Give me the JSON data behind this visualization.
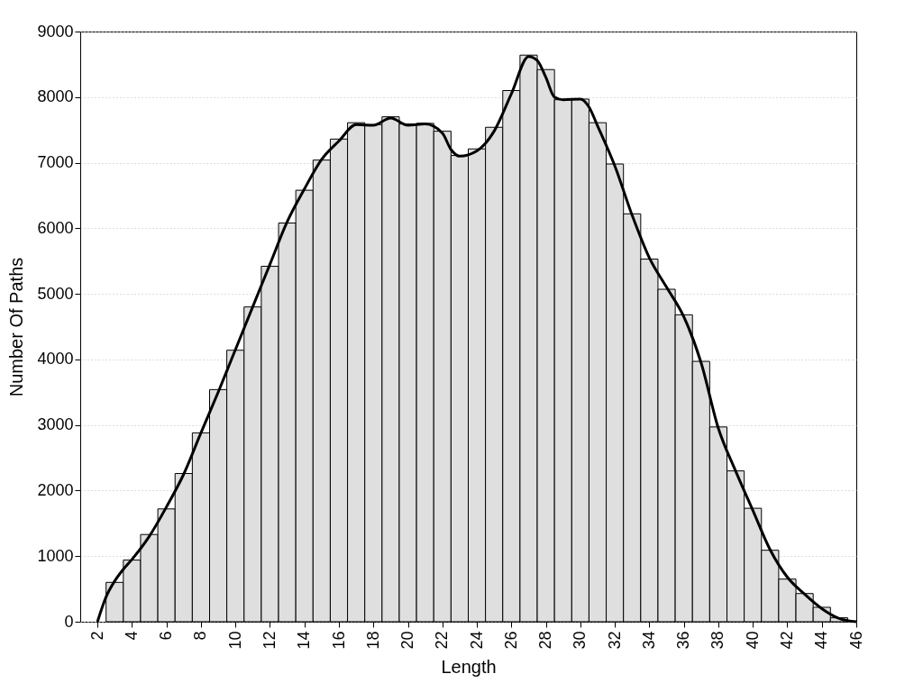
{
  "chart_data": {
    "type": "histogram",
    "xlabel": "Length",
    "ylabel": "Number Of Paths",
    "bins": [
      2.5,
      3.5,
      4.5,
      5.5,
      6.5,
      7.5,
      8.5,
      9.5,
      10.5,
      11.5,
      12.5,
      13.5,
      14.5,
      15.5,
      16.5,
      17.5,
      18.5,
      19.5,
      20.5,
      21.5,
      22.5,
      23.5,
      24.5,
      25.5,
      26.5,
      27.5,
      28.5,
      29.5,
      30.5,
      31.5,
      32.5,
      33.5,
      34.5,
      35.5,
      36.5,
      37.5,
      38.5,
      39.5,
      40.5,
      41.5,
      42.5,
      43.5,
      44.5,
      45.5
    ],
    "series": [
      {
        "color": "#dfdfdf",
        "values": [
          600,
          940,
          1330,
          1720,
          2260,
          2880,
          3540,
          4140,
          4800,
          5420,
          6080,
          6580,
          7040,
          7360,
          7610,
          7580,
          7700,
          7590,
          7600,
          7480,
          7110,
          7210,
          7540,
          8100,
          8640,
          8420,
          7960,
          7970,
          7610,
          6980,
          6220,
          5530,
          5070,
          4680,
          3970,
          2970,
          2300,
          1730,
          1090,
          650,
          430,
          220,
          60
        ]
      },
      {
        "type": "line",
        "color": "#000000",
        "x": [
          2,
          2.5,
          3,
          3.5,
          4,
          5,
          6,
          7,
          8,
          9,
          10,
          11,
          12,
          13,
          14,
          15,
          16,
          17,
          18,
          19,
          20,
          21,
          22,
          22.5,
          23,
          24,
          25,
          26,
          27,
          27.5,
          28,
          28.5,
          29,
          30,
          30.5,
          31,
          32,
          33,
          34,
          35,
          36,
          37,
          38,
          39,
          40,
          41,
          42,
          43,
          44,
          45,
          46
        ],
        "values": [
          0,
          380,
          620,
          800,
          950,
          1300,
          1750,
          2250,
          2880,
          3500,
          4150,
          4800,
          5450,
          6100,
          6600,
          7050,
          7330,
          7580,
          7570,
          7680,
          7570,
          7590,
          7450,
          7200,
          7100,
          7180,
          7480,
          8050,
          8620,
          8560,
          8300,
          8000,
          7960,
          7970,
          7850,
          7560,
          6950,
          6200,
          5550,
          5100,
          4650,
          3950,
          2950,
          2300,
          1700,
          1100,
          680,
          420,
          200,
          50,
          0
        ]
      }
    ],
    "xlim": [
      1,
      46
    ],
    "xticks": [
      2,
      4,
      6,
      8,
      10,
      12,
      14,
      16,
      18,
      20,
      22,
      24,
      26,
      28,
      30,
      32,
      34,
      36,
      38,
      40,
      42,
      44,
      46
    ],
    "ylim": [
      0,
      9000
    ],
    "yticks": [
      0,
      1000,
      2000,
      3000,
      4000,
      5000,
      6000,
      7000,
      8000,
      9000
    ],
    "grid": "y",
    "line_style": "solid",
    "marker": "none"
  }
}
